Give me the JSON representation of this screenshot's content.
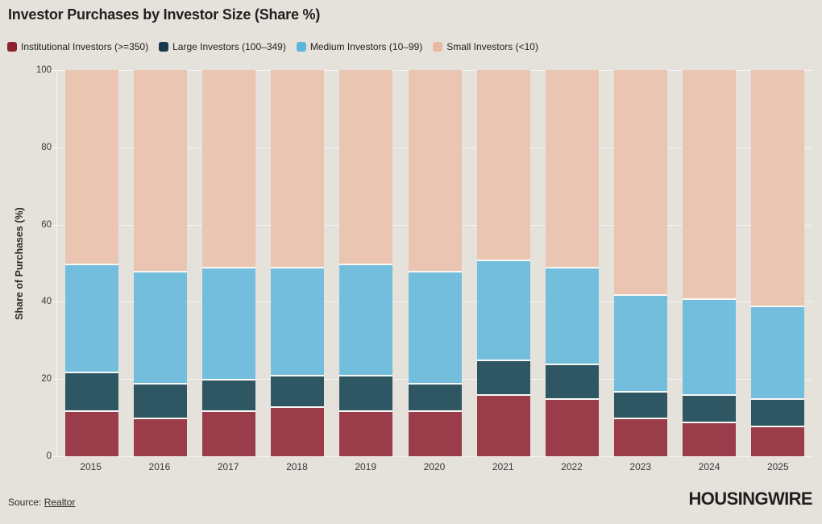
{
  "page": {
    "background": "#e5e1db",
    "title": "Investor Purchases by Investor Size (Share %)",
    "source_prefix": "Source: ",
    "source_link": "Realtor",
    "brand": "HOUSINGWIRE"
  },
  "chart_data": {
    "type": "bar",
    "stacked": true,
    "title": "Investor Purchases by Investor Size (Share %)",
    "xlabel": "",
    "ylabel": "Share of Purchases (%)",
    "ylim": [
      0,
      100
    ],
    "yticks": [
      0,
      20,
      40,
      60,
      80,
      100
    ],
    "grid": true,
    "legend_position": "top-left",
    "gridline_color": "rgba(255,255,255,0.65)",
    "categories": [
      "2015",
      "2016",
      "2017",
      "2018",
      "2019",
      "2020",
      "2021",
      "2022",
      "2023",
      "2024",
      "2025"
    ],
    "series": [
      {
        "name": "Institutional Investors (>=350)",
        "color": "#9a3c49",
        "legend_color": "#8c2331",
        "values": [
          12,
          10,
          12,
          13,
          12,
          12,
          16,
          15,
          10,
          9,
          8
        ]
      },
      {
        "name": "Large Investors (100–349)",
        "color": "#2e5663",
        "legend_color": "#173a4c",
        "values": [
          10,
          9,
          8,
          8,
          9,
          7,
          9,
          9,
          7,
          7,
          7
        ]
      },
      {
        "name": "Medium Investors (10–99)",
        "color": "#74bedd",
        "legend_color": "#5cb5da",
        "values": [
          28,
          29,
          29,
          28,
          29,
          29,
          26,
          25,
          25,
          25,
          24
        ]
      },
      {
        "name": "Small Investors (<10)",
        "color": "#e9c5b2",
        "legend_color": "#e8baa4",
        "values": [
          50,
          52,
          51,
          51,
          50,
          52,
          49,
          51,
          58,
          59,
          61
        ]
      }
    ]
  }
}
